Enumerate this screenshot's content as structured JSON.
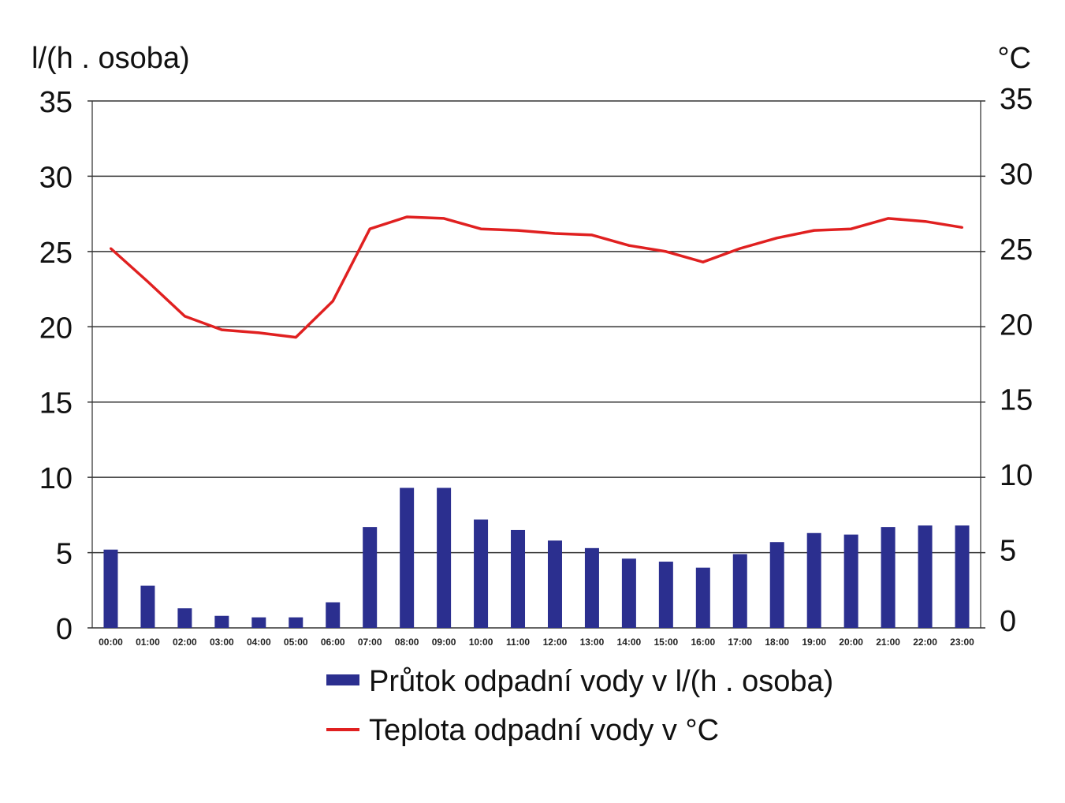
{
  "chart_data": {
    "type": "bar+line",
    "categories": [
      "00:00",
      "01:00",
      "02:00",
      "03:00",
      "04:00",
      "05:00",
      "06:00",
      "07:00",
      "08:00",
      "09:00",
      "10:00",
      "11:00",
      "12:00",
      "13:00",
      "14:00",
      "15:00",
      "16:00",
      "17:00",
      "18:00",
      "19:00",
      "20:00",
      "21:00",
      "22:00",
      "23:00"
    ],
    "series": [
      {
        "name": "Průtok odpadní vody v l/(h . osoba)",
        "type": "bar",
        "axis": "left",
        "color": "#2b2f8f",
        "values": [
          5.2,
          2.8,
          1.3,
          0.8,
          0.7,
          0.7,
          1.7,
          6.7,
          9.3,
          9.3,
          7.2,
          6.5,
          5.8,
          5.3,
          4.6,
          4.4,
          4.0,
          4.9,
          5.7,
          6.3,
          6.2,
          6.7,
          6.8,
          6.8
        ]
      },
      {
        "name": "Teplota odpadní vody v °C",
        "type": "line",
        "axis": "right",
        "color": "#e02020",
        "values": [
          25.2,
          23.0,
          20.7,
          19.8,
          19.6,
          19.3,
          21.7,
          26.5,
          27.3,
          27.2,
          26.5,
          26.4,
          26.2,
          26.1,
          25.4,
          25.0,
          24.3,
          25.2,
          25.9,
          26.4,
          26.5,
          27.2,
          27.0,
          26.6
        ]
      }
    ],
    "y_left": {
      "label": "l/(h . osoba)",
      "ticks": [
        "35",
        "30",
        "25",
        "20",
        "15",
        "10",
        "5",
        "0"
      ],
      "lim": [
        0,
        35
      ]
    },
    "y_right": {
      "label": "°C",
      "ticks": [
        "35",
        "30",
        "25",
        "20",
        "15",
        "10",
        "5",
        "0"
      ],
      "lim": [
        0,
        35
      ]
    },
    "grid": true,
    "legend": {
      "placement": "bottom",
      "items": [
        {
          "label": "Průtok odpadní vody v l/(h . osoba)",
          "symbol": "bar",
          "color": "#2b2f8f"
        },
        {
          "label": "Teplota odpadní vody v °C",
          "symbol": "line",
          "color": "#e02020"
        }
      ]
    }
  }
}
